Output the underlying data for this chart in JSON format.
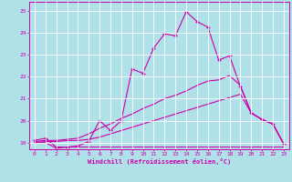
{
  "background_color": "#b0e0e8",
  "grid_color": "#ffffff",
  "line_color": "#cc00aa",
  "xlim_min": -0.5,
  "xlim_max": 23.5,
  "ylim_min": 18.7,
  "ylim_max": 25.4,
  "yticks": [
    19,
    20,
    21,
    22,
    23,
    24,
    25
  ],
  "xticks": [
    0,
    1,
    2,
    3,
    4,
    5,
    6,
    7,
    8,
    9,
    10,
    11,
    12,
    13,
    14,
    15,
    16,
    17,
    18,
    19,
    20,
    21,
    22,
    23
  ],
  "xlabel": "Windchill (Refroidissement éolien,°C)",
  "series": [
    {
      "x": [
        0,
        1,
        2,
        3,
        4,
        5,
        6,
        7,
        8,
        9,
        10,
        11,
        12,
        13,
        14,
        15,
        16,
        17,
        18,
        19,
        20,
        21,
        22,
        23
      ],
      "y": [
        19.0,
        19.0,
        18.75,
        18.8,
        18.8,
        18.8,
        18.8,
        18.8,
        18.8,
        18.8,
        18.8,
        18.8,
        18.8,
        18.8,
        18.8,
        18.8,
        18.8,
        18.8,
        18.8,
        18.8,
        18.8,
        18.8,
        18.8,
        18.8
      ],
      "marker": false
    },
    {
      "x": [
        0,
        1,
        2,
        3,
        4,
        5,
        6,
        7,
        8,
        9,
        10,
        11,
        12,
        13,
        14,
        15,
        16,
        17,
        18,
        19,
        20,
        21,
        22,
        23
      ],
      "y": [
        19.0,
        19.05,
        19.05,
        19.1,
        19.1,
        19.15,
        19.25,
        19.4,
        19.55,
        19.7,
        19.85,
        20.0,
        20.15,
        20.3,
        20.45,
        20.6,
        20.75,
        20.9,
        21.05,
        21.2,
        20.35,
        20.05,
        19.85,
        18.95
      ],
      "marker": false
    },
    {
      "x": [
        0,
        1,
        2,
        3,
        4,
        5,
        6,
        7,
        8,
        9,
        10,
        11,
        12,
        13,
        14,
        15,
        16,
        17,
        18,
        19,
        20,
        21,
        22,
        23
      ],
      "y": [
        19.05,
        19.1,
        19.1,
        19.15,
        19.2,
        19.4,
        19.65,
        19.85,
        20.1,
        20.3,
        20.55,
        20.75,
        21.0,
        21.15,
        21.35,
        21.6,
        21.8,
        21.85,
        22.05,
        21.6,
        20.35,
        20.05,
        19.85,
        18.95
      ],
      "marker": false
    },
    {
      "x": [
        0,
        1,
        2,
        3,
        4,
        5,
        6,
        7,
        8,
        9,
        10,
        11,
        12,
        13,
        14,
        15,
        16,
        17,
        18,
        19,
        20,
        21,
        22,
        23
      ],
      "y": [
        19.1,
        19.2,
        18.8,
        18.8,
        18.85,
        19.05,
        20.0,
        19.55,
        20.0,
        22.35,
        22.15,
        23.3,
        23.95,
        23.85,
        24.95,
        24.5,
        24.25,
        22.75,
        22.95,
        21.55,
        20.35,
        20.05,
        19.85,
        18.95
      ],
      "marker": true
    }
  ]
}
